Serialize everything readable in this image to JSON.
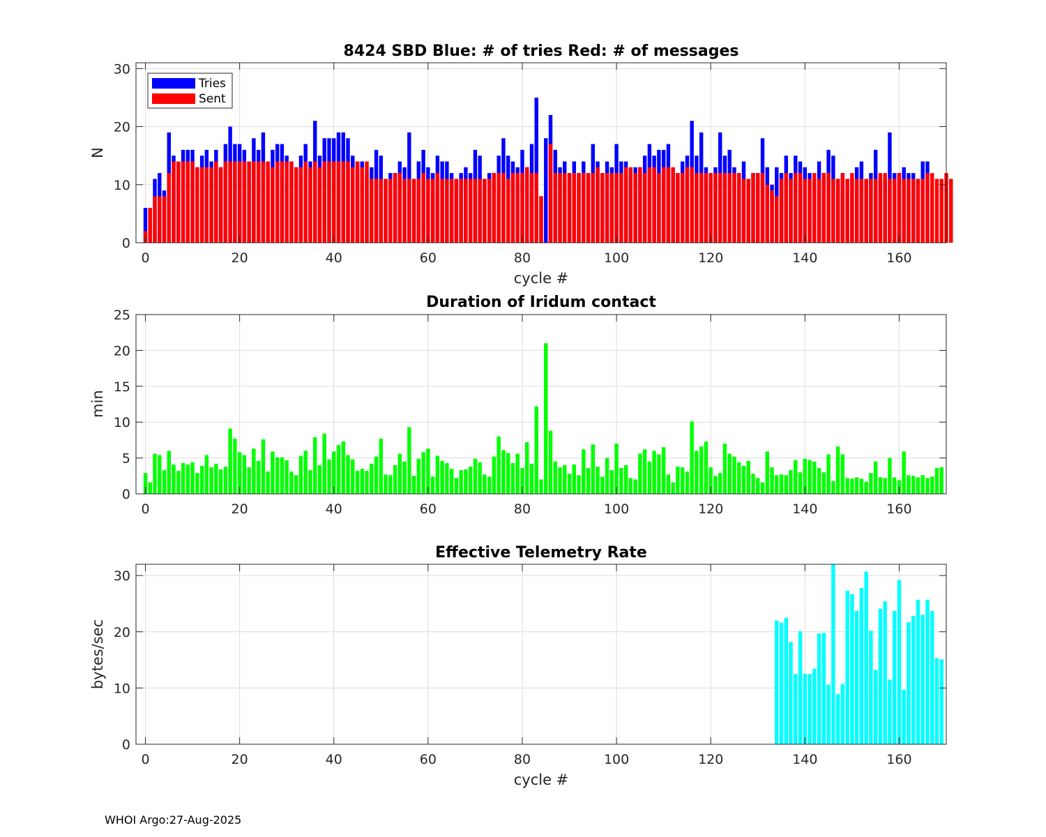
{
  "colors": {
    "tries": "#0000ff",
    "sent": "#ff0000",
    "duration": "#00ff00",
    "rate": "#00ffff",
    "grid": "#dcdcdc",
    "axis": "#262626"
  },
  "chart_data": [
    {
      "type": "bar",
      "title": "8424 SBD  Blue: # of tries   Red: # of messages",
      "xlabel": "cycle #",
      "ylabel": "N",
      "xlim": [
        -2,
        170
      ],
      "ylim": [
        0,
        31
      ],
      "xticks": [
        0,
        20,
        40,
        60,
        80,
        100,
        120,
        140,
        160
      ],
      "yticks": [
        0,
        10,
        20,
        30
      ],
      "legend": {
        "position": "top-left",
        "entries": [
          "Tries",
          "Sent"
        ]
      },
      "series": [
        {
          "name": "Tries",
          "color": "#0000ff",
          "x_start": 0,
          "values": [
            6,
            6,
            11,
            12,
            9,
            19,
            15,
            14,
            16,
            16,
            16,
            13,
            15,
            16,
            14,
            16,
            13,
            17,
            20,
            17,
            17,
            16,
            14,
            18,
            16,
            19,
            14,
            16,
            17,
            17,
            15,
            14,
            13,
            15,
            17,
            14,
            21,
            15,
            18,
            18,
            18,
            19,
            19,
            18,
            15,
            14,
            14,
            12,
            13,
            16,
            15,
            11,
            12,
            12,
            14,
            13,
            19,
            11,
            14,
            16,
            13,
            12,
            15,
            14,
            14,
            12,
            11,
            12,
            13,
            12,
            16,
            15,
            11,
            12,
            12,
            15,
            18,
            15,
            14,
            13,
            16,
            13,
            17,
            25,
            8,
            18,
            22,
            16,
            13,
            14,
            12,
            14,
            12,
            14,
            12,
            17,
            14,
            12,
            14,
            13,
            17,
            14,
            14,
            12,
            13,
            13,
            15,
            17,
            15,
            16,
            16,
            17,
            12,
            12,
            14,
            15,
            21,
            15,
            19,
            13,
            12,
            13,
            19,
            15,
            16,
            13,
            12,
            14,
            11,
            12,
            12,
            18,
            13,
            10,
            13,
            12,
            15,
            12,
            15,
            14,
            13,
            12,
            11,
            14,
            12,
            16,
            15,
            11,
            12,
            11,
            11,
            13,
            14,
            11,
            12,
            16,
            11,
            11,
            19,
            12,
            12,
            13,
            12,
            12,
            11,
            14,
            14
          ]
        },
        {
          "name": "Sent",
          "color": "#ff0000",
          "x_start": 0,
          "values": [
            2,
            6,
            8,
            8,
            8,
            12,
            14,
            14,
            14,
            14,
            14,
            13,
            13,
            13,
            13,
            14,
            13,
            14,
            14,
            14,
            14,
            14,
            14,
            14,
            14,
            14,
            14,
            13,
            14,
            14,
            14,
            14,
            13,
            13,
            14,
            13,
            14,
            13,
            14,
            14,
            14,
            14,
            14,
            14,
            13,
            14,
            13,
            14,
            11,
            11,
            11,
            11,
            11,
            12,
            12,
            11,
            11,
            11,
            11,
            12,
            11,
            11,
            12,
            11,
            11,
            11,
            11,
            11,
            11,
            11,
            11,
            11,
            11,
            11,
            12,
            12,
            12,
            11,
            12,
            12,
            12,
            13,
            12,
            12,
            8,
            0,
            17,
            12,
            12,
            12,
            12,
            12,
            12,
            12,
            12,
            12,
            13,
            12,
            12,
            12,
            12,
            12,
            13,
            13,
            12,
            13,
            12,
            13,
            13,
            12,
            13,
            13,
            13,
            12,
            12,
            13,
            13,
            12,
            12,
            12,
            12,
            12,
            12,
            12,
            12,
            12,
            12,
            11,
            11,
            12,
            12,
            12,
            10,
            9,
            8,
            11,
            12,
            11,
            12,
            12,
            11,
            11,
            12,
            11,
            12,
            12,
            11,
            11,
            12,
            11,
            12,
            11,
            11,
            11,
            11,
            11,
            12,
            12,
            11,
            11,
            12,
            11,
            11,
            11,
            11,
            11,
            12,
            12,
            11,
            11,
            12,
            11
          ]
        }
      ]
    },
    {
      "type": "bar",
      "title": "Duration of Iridum contact",
      "xlabel": "",
      "ylabel": "min",
      "xlim": [
        -2,
        170
      ],
      "ylim": [
        0,
        25
      ],
      "xticks": [
        0,
        20,
        40,
        60,
        80,
        100,
        120,
        140,
        160
      ],
      "yticks": [
        0,
        5,
        10,
        15,
        20,
        25
      ],
      "series": [
        {
          "name": "Duration",
          "color": "#00ff00",
          "x_start": 0,
          "values": [
            2.9,
            1.6,
            5.6,
            5.4,
            3.3,
            6.0,
            4.1,
            3.2,
            4.3,
            4.1,
            4.4,
            2.9,
            3.9,
            5.4,
            3.7,
            4.2,
            3.4,
            3.8,
            9.1,
            7.7,
            5.8,
            5.4,
            3.7,
            6.3,
            4.6,
            7.6,
            3.1,
            5.9,
            5.1,
            5.1,
            4.7,
            3.1,
            2.6,
            5.3,
            6.0,
            3.3,
            7.9,
            4.0,
            8.4,
            4.8,
            5.9,
            6.8,
            7.3,
            5.4,
            4.8,
            3.2,
            3.5,
            3.2,
            4.2,
            5.2,
            7.7,
            2.7,
            2.6,
            4.0,
            5.6,
            4.5,
            9.3,
            2.5,
            4.9,
            5.8,
            6.3,
            2.4,
            5.3,
            4.6,
            4.3,
            3.5,
            2.2,
            3.3,
            3.4,
            3.8,
            4.9,
            4.4,
            2.7,
            2.4,
            5.2,
            8.0,
            6.1,
            5.7,
            4.3,
            5.6,
            3.6,
            7.2,
            4.2,
            12.2,
            2.0,
            21.0,
            8.8,
            4.5,
            3.7,
            4.0,
            2.8,
            4.1,
            2.6,
            6.2,
            3.6,
            6.9,
            3.8,
            2.4,
            5.0,
            3.3,
            7.0,
            3.6,
            4.0,
            2.2,
            2.0,
            5.6,
            6.2,
            4.5,
            6.0,
            5.5,
            6.5,
            2.7,
            1.6,
            3.8,
            3.7,
            3.1,
            10.1,
            6.0,
            6.6,
            7.3,
            3.7,
            2.5,
            2.9,
            7.0,
            5.6,
            5.2,
            4.4,
            3.9,
            4.6,
            2.8,
            2.2,
            1.6,
            5.9,
            3.7,
            2.6,
            2.7,
            2.6,
            3.3,
            4.7,
            3.0,
            4.9,
            4.7,
            4.5,
            3.6,
            3.0,
            5.5,
            1.8,
            6.6,
            5.5,
            2.2,
            2.1,
            2.3,
            2.1,
            1.7,
            2.9,
            4.5,
            2.3,
            2.2,
            5.0,
            2.3,
            1.9,
            5.9,
            2.6,
            2.5,
            2.3,
            2.6,
            2.2,
            2.4,
            3.6,
            3.7
          ]
        }
      ]
    },
    {
      "type": "bar",
      "title": "Effective Telemetry Rate",
      "xlabel": "cycle #",
      "ylabel": "bytes/sec",
      "xlim": [
        -2,
        170
      ],
      "ylim": [
        0,
        32
      ],
      "xticks": [
        0,
        20,
        40,
        60,
        80,
        100,
        120,
        140,
        160
      ],
      "yticks": [
        0,
        10,
        20,
        30
      ],
      "series": [
        {
          "name": "Rate",
          "color": "#00ffff",
          "x_start": 134,
          "values": [
            22.0,
            21.6,
            22.5,
            18.2,
            12.5,
            20.1,
            12.5,
            12.5,
            13.4,
            19.7,
            19.8,
            10.6,
            32.0,
            8.9,
            10.7,
            27.3,
            26.7,
            23.7,
            27.8,
            30.7,
            20.2,
            13.2,
            24.1,
            25.4,
            11.5,
            23.7,
            29.2,
            9.7,
            21.7,
            22.8,
            25.7,
            23.0,
            25.7,
            23.7,
            15.3,
            15.1
          ]
        }
      ]
    }
  ],
  "footer": "WHOI Argo:27-Aug-2025"
}
